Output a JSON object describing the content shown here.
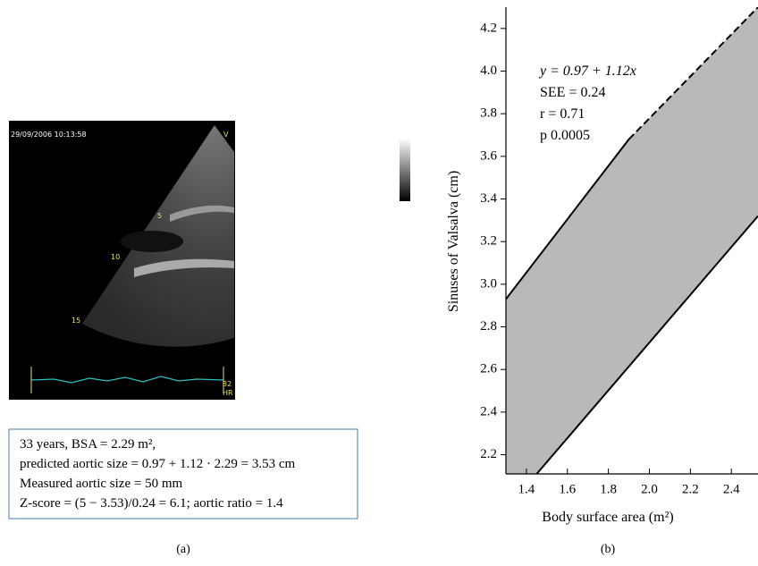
{
  "panel_a": {
    "image_texts": {
      "timestamp": "29/09/2006 10:13:58",
      "marker": "V",
      "depth_5": "5",
      "depth_10": "10",
      "depth_15": "15",
      "heart_rate": "82",
      "heart_rate_unit": "HR"
    },
    "caption_lines": [
      "33 years, BSA = 2.29 m²,",
      "predicted aortic size = 0.97 + 1.12 · 2.29 = 3.53 cm",
      "Measured aortic size = 50 mm",
      "Z-score = (5 − 3.53)/0.24 = 6.1; aortic ratio = 1.4"
    ],
    "label": "(a)"
  },
  "chart_data": {
    "type": "band",
    "x_label": "Body surface area (m²)",
    "y_label": "Sinuses of Valsalva (cm)",
    "annotations": [
      "y = 0.97 + 1.12x",
      "SEE = 0.24",
      "r = 0.71",
      "p  0.0005"
    ],
    "panel_label": "(b)",
    "series": [
      {
        "x": [
          1.3,
          1.9,
          2.53
        ],
        "values": [
          2.93,
          3.68,
          4.3
        ],
        "line_style": [
          "solid",
          "dashed"
        ]
      },
      {
        "x": [
          1.45,
          2.53
        ],
        "values": [
          2.11,
          3.32
        ],
        "line_style": [
          "solid"
        ]
      }
    ],
    "band_color": "#b9b9b9",
    "xlim": [
      1.3,
      2.53
    ],
    "ylim": [
      2.11,
      4.3
    ],
    "xticks": [
      1.4,
      1.6,
      1.8,
      {
        "value": 2.0,
        "label": "2.0"
      },
      2.2,
      2.4
    ],
    "yticks": [
      2.2,
      2.4,
      2.6,
      2.8,
      {
        "value": 3.0,
        "label": "3.0"
      },
      3.2,
      3.4,
      3.6,
      3.8,
      {
        "value": 4.0,
        "label": "4.0"
      },
      4.2
    ]
  }
}
